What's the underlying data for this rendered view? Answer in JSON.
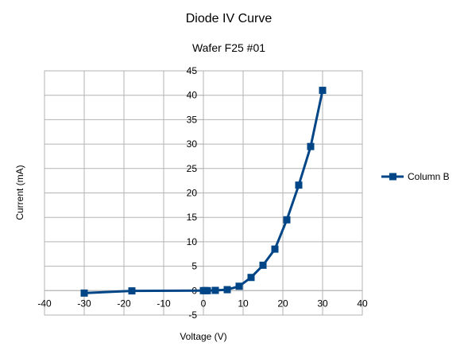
{
  "chart_data": {
    "type": "line",
    "title": "Diode IV Curve",
    "subtitle": "Wafer F25 #01",
    "xlabel": "Voltage (V)",
    "ylabel": "Current (mA)",
    "xlim": [
      -40,
      40
    ],
    "ylim": [
      -5,
      45
    ],
    "xticks": [
      -40,
      -30,
      -20,
      -10,
      0,
      10,
      20,
      30,
      40
    ],
    "yticks": [
      -5,
      0,
      5,
      10,
      15,
      20,
      25,
      30,
      35,
      40,
      45
    ],
    "grid": true,
    "legend_position": "right",
    "series": [
      {
        "name": "Column B",
        "color": "#004586",
        "marker": "square",
        "x": [
          -30,
          -18,
          0,
          0.5,
          1,
          3,
          6,
          9,
          12,
          15,
          18,
          21,
          24,
          27,
          30
        ],
        "y": [
          -0.5,
          -0.05,
          0,
          0,
          0,
          0.05,
          0.2,
          0.9,
          2.7,
          5.2,
          8.5,
          14.5,
          21.6,
          29.5,
          41
        ]
      }
    ]
  }
}
